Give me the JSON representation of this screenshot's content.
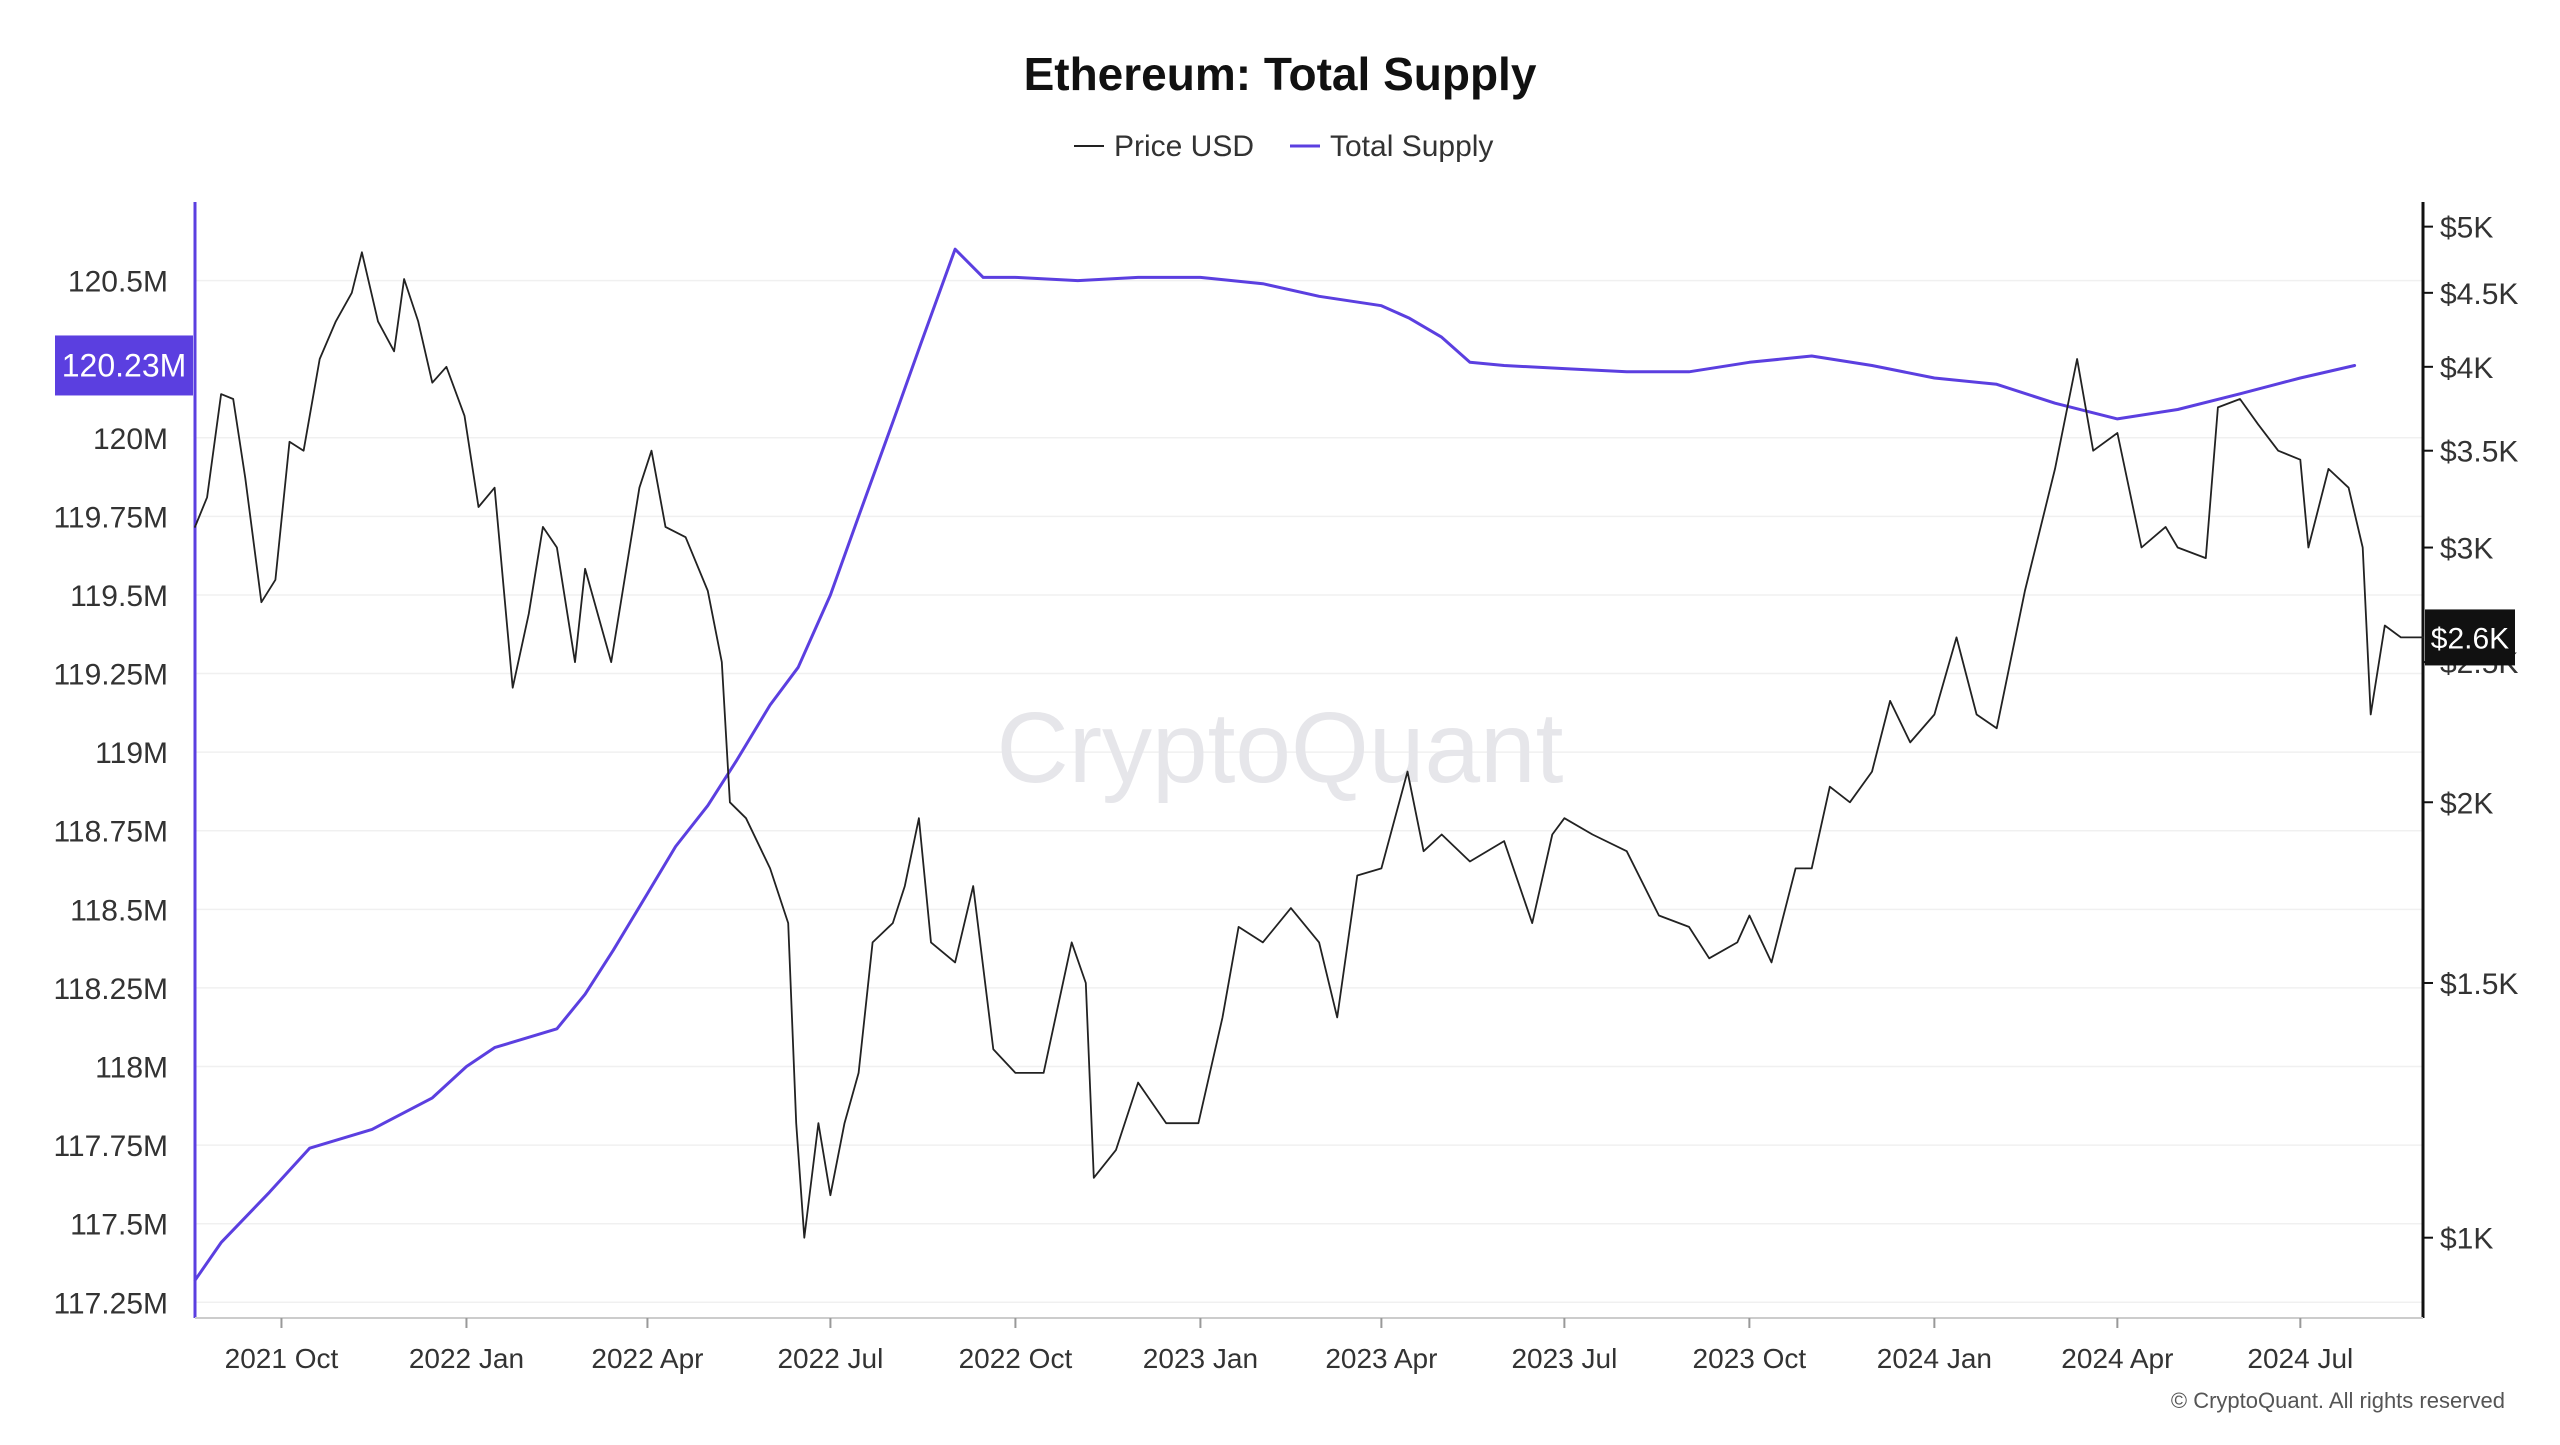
{
  "chart_data": {
    "type": "line",
    "title": "Ethereum: Total Supply",
    "legend": {
      "placement": "top-center",
      "entries": [
        {
          "label": "Price USD",
          "color": "#222222"
        },
        {
          "label": "Total Supply",
          "color": "#5B3FE0"
        }
      ]
    },
    "x_ticks": [
      "2021 Oct",
      "2022 Jan",
      "2022 Apr",
      "2022 Jul",
      "2022 Oct",
      "2023 Jan",
      "2023 Apr",
      "2023 Jul",
      "2023 Oct",
      "2024 Jan",
      "2024 Apr",
      "2024 Jul"
    ],
    "x_range": [
      "2021-08-19",
      "2024-08-31"
    ],
    "left_axis": {
      "name": "Total Supply",
      "ticks": [
        "117.25M",
        "117.5M",
        "117.75M",
        "118M",
        "118.25M",
        "118.5M",
        "118.75M",
        "119M",
        "119.25M",
        "119.5M",
        "119.75M",
        "120M",
        "120.5M"
      ],
      "range": [
        117.2,
        120.75
      ],
      "current_label": "120.23M",
      "current_color": "#5B3FE0"
    },
    "right_axis": {
      "name": "Price USD",
      "scale": "log",
      "ticks": [
        "$1K",
        "$1.5K",
        "$2K",
        "$2.5K",
        "$3K",
        "$3.5K",
        "$4K",
        "$4.5K",
        "$5K"
      ],
      "range": [
        880,
        5200
      ],
      "current_label": "$2.6K",
      "current_color": "#111111"
    },
    "grid": "horizontal",
    "series": [
      {
        "name": "Total Supply",
        "axis": "left",
        "color": "#5B3FE0",
        "points": [
          [
            "2021-08-19",
            117.32
          ],
          [
            "2021-09-01",
            117.44
          ],
          [
            "2021-09-25",
            117.6
          ],
          [
            "2021-10-15",
            117.74
          ],
          [
            "2021-11-15",
            117.8
          ],
          [
            "2021-12-15",
            117.9
          ],
          [
            "2022-01-01",
            118.0
          ],
          [
            "2022-01-15",
            118.06
          ],
          [
            "2022-02-15",
            118.12
          ],
          [
            "2022-03-01",
            118.23
          ],
          [
            "2022-03-15",
            118.37
          ],
          [
            "2022-04-01",
            118.55
          ],
          [
            "2022-04-15",
            118.7
          ],
          [
            "2022-05-01",
            118.83
          ],
          [
            "2022-05-15",
            118.97
          ],
          [
            "2022-06-01",
            119.15
          ],
          [
            "2022-06-15",
            119.27
          ],
          [
            "2022-07-01",
            119.5
          ],
          [
            "2022-07-15",
            119.75
          ],
          [
            "2022-08-01",
            120.05
          ],
          [
            "2022-08-15",
            120.3
          ],
          [
            "2022-09-01",
            120.6
          ],
          [
            "2022-09-15",
            120.51
          ],
          [
            "2022-10-01",
            120.51
          ],
          [
            "2022-11-01",
            120.5
          ],
          [
            "2022-12-01",
            120.51
          ],
          [
            "2023-01-01",
            120.51
          ],
          [
            "2023-02-01",
            120.49
          ],
          [
            "2023-03-01",
            120.45
          ],
          [
            "2023-04-01",
            120.42
          ],
          [
            "2023-04-15",
            120.38
          ],
          [
            "2023-05-01",
            120.32
          ],
          [
            "2023-05-15",
            120.24
          ],
          [
            "2023-06-01",
            120.23
          ],
          [
            "2023-07-01",
            120.22
          ],
          [
            "2023-08-01",
            120.21
          ],
          [
            "2023-09-01",
            120.21
          ],
          [
            "2023-10-01",
            120.24
          ],
          [
            "2023-11-01",
            120.26
          ],
          [
            "2023-12-01",
            120.23
          ],
          [
            "2024-01-01",
            120.19
          ],
          [
            "2024-02-01",
            120.17
          ],
          [
            "2024-03-01",
            120.11
          ],
          [
            "2024-04-01",
            120.06
          ],
          [
            "2024-05-01",
            120.09
          ],
          [
            "2024-06-01",
            120.14
          ],
          [
            "2024-07-01",
            120.19
          ],
          [
            "2024-07-28",
            120.23
          ]
        ]
      },
      {
        "name": "Price USD",
        "axis": "right",
        "color": "#222222",
        "points": [
          [
            "2021-08-19",
            3100
          ],
          [
            "2021-08-25",
            3250
          ],
          [
            "2021-09-01",
            3830
          ],
          [
            "2021-09-07",
            3800
          ],
          [
            "2021-09-13",
            3350
          ],
          [
            "2021-09-21",
            2750
          ],
          [
            "2021-09-28",
            2850
          ],
          [
            "2021-10-05",
            3550
          ],
          [
            "2021-10-12",
            3500
          ],
          [
            "2021-10-20",
            4050
          ],
          [
            "2021-10-28",
            4300
          ],
          [
            "2021-11-05",
            4500
          ],
          [
            "2021-11-10",
            4800
          ],
          [
            "2021-11-18",
            4300
          ],
          [
            "2021-11-26",
            4100
          ],
          [
            "2021-12-01",
            4600
          ],
          [
            "2021-12-08",
            4300
          ],
          [
            "2021-12-15",
            3900
          ],
          [
            "2021-12-22",
            4000
          ],
          [
            "2021-12-31",
            3700
          ],
          [
            "2022-01-07",
            3200
          ],
          [
            "2022-01-15",
            3300
          ],
          [
            "2022-01-24",
            2400
          ],
          [
            "2022-02-01",
            2700
          ],
          [
            "2022-02-08",
            3100
          ],
          [
            "2022-02-15",
            3000
          ],
          [
            "2022-02-24",
            2500
          ],
          [
            "2022-03-01",
            2900
          ],
          [
            "2022-03-14",
            2500
          ],
          [
            "2022-03-28",
            3300
          ],
          [
            "2022-04-03",
            3500
          ],
          [
            "2022-04-10",
            3100
          ],
          [
            "2022-04-20",
            3050
          ],
          [
            "2022-05-01",
            2800
          ],
          [
            "2022-05-08",
            2500
          ],
          [
            "2022-05-12",
            2000
          ],
          [
            "2022-05-20",
            1950
          ],
          [
            "2022-06-01",
            1800
          ],
          [
            "2022-06-10",
            1650
          ],
          [
            "2022-06-14",
            1200
          ],
          [
            "2022-06-18",
            1000
          ],
          [
            "2022-06-25",
            1200
          ],
          [
            "2022-07-01",
            1070
          ],
          [
            "2022-07-08",
            1200
          ],
          [
            "2022-07-15",
            1300
          ],
          [
            "2022-07-22",
            1600
          ],
          [
            "2022-08-01",
            1650
          ],
          [
            "2022-08-07",
            1750
          ],
          [
            "2022-08-14",
            1950
          ],
          [
            "2022-08-20",
            1600
          ],
          [
            "2022-09-01",
            1550
          ],
          [
            "2022-09-10",
            1750
          ],
          [
            "2022-09-20",
            1350
          ],
          [
            "2022-10-01",
            1300
          ],
          [
            "2022-10-15",
            1300
          ],
          [
            "2022-10-29",
            1600
          ],
          [
            "2022-11-05",
            1500
          ],
          [
            "2022-11-09",
            1100
          ],
          [
            "2022-11-20",
            1150
          ],
          [
            "2022-12-01",
            1280
          ],
          [
            "2022-12-15",
            1200
          ],
          [
            "2022-12-31",
            1200
          ],
          [
            "2023-01-12",
            1420
          ],
          [
            "2023-01-20",
            1640
          ],
          [
            "2023-02-01",
            1600
          ],
          [
            "2023-02-15",
            1690
          ],
          [
            "2023-03-01",
            1600
          ],
          [
            "2023-03-10",
            1420
          ],
          [
            "2023-03-20",
            1780
          ],
          [
            "2023-04-01",
            1800
          ],
          [
            "2023-04-14",
            2100
          ],
          [
            "2023-04-22",
            1850
          ],
          [
            "2023-05-01",
            1900
          ],
          [
            "2023-05-15",
            1820
          ],
          [
            "2023-06-01",
            1880
          ],
          [
            "2023-06-15",
            1650
          ],
          [
            "2023-06-25",
            1900
          ],
          [
            "2023-07-01",
            1950
          ],
          [
            "2023-07-15",
            1900
          ],
          [
            "2023-08-01",
            1850
          ],
          [
            "2023-08-17",
            1670
          ],
          [
            "2023-09-01",
            1640
          ],
          [
            "2023-09-11",
            1560
          ],
          [
            "2023-09-25",
            1600
          ],
          [
            "2023-10-01",
            1670
          ],
          [
            "2023-10-12",
            1550
          ],
          [
            "2023-10-24",
            1800
          ],
          [
            "2023-11-01",
            1800
          ],
          [
            "2023-11-10",
            2050
          ],
          [
            "2023-11-20",
            2000
          ],
          [
            "2023-12-01",
            2100
          ],
          [
            "2023-12-10",
            2350
          ],
          [
            "2023-12-20",
            2200
          ],
          [
            "2024-01-01",
            2300
          ],
          [
            "2024-01-12",
            2600
          ],
          [
            "2024-01-22",
            2300
          ],
          [
            "2024-02-01",
            2250
          ],
          [
            "2024-02-15",
            2800
          ],
          [
            "2024-03-01",
            3400
          ],
          [
            "2024-03-12",
            4050
          ],
          [
            "2024-03-20",
            3500
          ],
          [
            "2024-04-01",
            3600
          ],
          [
            "2024-04-13",
            3000
          ],
          [
            "2024-04-25",
            3100
          ],
          [
            "2024-05-01",
            3000
          ],
          [
            "2024-05-15",
            2950
          ],
          [
            "2024-05-21",
            3750
          ],
          [
            "2024-06-01",
            3800
          ],
          [
            "2024-06-10",
            3650
          ],
          [
            "2024-06-20",
            3500
          ],
          [
            "2024-07-01",
            3450
          ],
          [
            "2024-07-05",
            3000
          ],
          [
            "2024-07-15",
            3400
          ],
          [
            "2024-07-25",
            3300
          ],
          [
            "2024-08-01",
            3000
          ],
          [
            "2024-08-05",
            2300
          ],
          [
            "2024-08-12",
            2650
          ],
          [
            "2024-08-20",
            2600
          ],
          [
            "2024-08-31",
            2600
          ]
        ]
      }
    ],
    "watermark": "CryptoQuant",
    "footer": "© CryptoQuant. All rights reserved"
  }
}
